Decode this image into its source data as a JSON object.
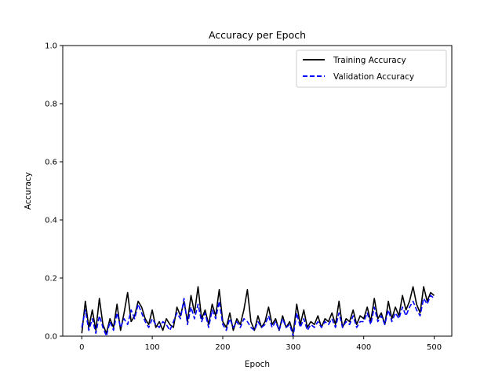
{
  "chart_data": {
    "type": "line",
    "title": "Accuracy per Epoch",
    "xlabel": "Epoch",
    "ylabel": "Accuracy",
    "xlim": [
      -27,
      525
    ],
    "ylim": [
      0,
      1.0
    ],
    "xticks": [
      0,
      100,
      200,
      300,
      400,
      500
    ],
    "yticks": [
      0.0,
      0.2,
      0.4,
      0.6,
      0.8,
      1.0
    ],
    "xtick_labels": [
      "0",
      "100",
      "200",
      "300",
      "400",
      "500"
    ],
    "ytick_labels": [
      "0.0",
      "0.2",
      "0.4",
      "0.6",
      "0.8",
      "1.0"
    ],
    "legend_position": "top-right",
    "grid": false,
    "series": [
      {
        "name": "Training Accuracy",
        "color": "#000000",
        "dash": "solid",
        "x": [
          0,
          5,
          10,
          15,
          20,
          25,
          30,
          35,
          40,
          45,
          50,
          55,
          60,
          65,
          70,
          75,
          80,
          85,
          90,
          95,
          100,
          105,
          110,
          115,
          120,
          125,
          130,
          135,
          140,
          145,
          150,
          155,
          160,
          165,
          170,
          175,
          180,
          185,
          190,
          195,
          200,
          205,
          210,
          215,
          220,
          225,
          230,
          235,
          240,
          245,
          250,
          255,
          260,
          265,
          270,
          275,
          280,
          285,
          290,
          295,
          300,
          305,
          310,
          315,
          320,
          325,
          330,
          335,
          340,
          345,
          350,
          355,
          360,
          365,
          370,
          375,
          380,
          385,
          390,
          395,
          400,
          405,
          410,
          415,
          420,
          425,
          430,
          435,
          440,
          445,
          450,
          455,
          460,
          465,
          470,
          475,
          480,
          485,
          490,
          495,
          500
        ],
        "values": [
          0.01,
          0.12,
          0.03,
          0.09,
          0.02,
          0.13,
          0.04,
          0.01,
          0.06,
          0.03,
          0.11,
          0.02,
          0.08,
          0.15,
          0.05,
          0.07,
          0.12,
          0.1,
          0.06,
          0.04,
          0.09,
          0.03,
          0.05,
          0.02,
          0.06,
          0.04,
          0.03,
          0.1,
          0.07,
          0.12,
          0.05,
          0.14,
          0.08,
          0.17,
          0.06,
          0.09,
          0.04,
          0.11,
          0.07,
          0.16,
          0.05,
          0.03,
          0.08,
          0.02,
          0.06,
          0.04,
          0.09,
          0.16,
          0.05,
          0.02,
          0.07,
          0.03,
          0.05,
          0.1,
          0.04,
          0.06,
          0.02,
          0.07,
          0.03,
          0.05,
          0.01,
          0.11,
          0.04,
          0.09,
          0.03,
          0.05,
          0.04,
          0.07,
          0.03,
          0.06,
          0.05,
          0.08,
          0.04,
          0.12,
          0.03,
          0.06,
          0.05,
          0.09,
          0.04,
          0.07,
          0.06,
          0.1,
          0.05,
          0.13,
          0.06,
          0.08,
          0.04,
          0.12,
          0.06,
          0.1,
          0.07,
          0.14,
          0.09,
          0.12,
          0.17,
          0.11,
          0.08,
          0.17,
          0.12,
          0.15,
          0.14
        ]
      },
      {
        "name": "Validation Accuracy",
        "color": "#0000ff",
        "dash": "dashed",
        "x": [
          0,
          5,
          10,
          15,
          20,
          25,
          30,
          35,
          40,
          45,
          50,
          55,
          60,
          65,
          70,
          75,
          80,
          85,
          90,
          95,
          100,
          105,
          110,
          115,
          120,
          125,
          130,
          135,
          140,
          145,
          150,
          155,
          160,
          165,
          170,
          175,
          180,
          185,
          190,
          195,
          200,
          205,
          210,
          215,
          220,
          225,
          230,
          235,
          240,
          245,
          250,
          255,
          260,
          265,
          270,
          275,
          280,
          285,
          290,
          295,
          300,
          305,
          310,
          315,
          320,
          325,
          330,
          335,
          340,
          345,
          350,
          355,
          360,
          365,
          370,
          375,
          380,
          385,
          390,
          395,
          400,
          405,
          410,
          415,
          420,
          425,
          430,
          435,
          440,
          445,
          450,
          455,
          460,
          465,
          470,
          475,
          480,
          485,
          490,
          495,
          500
        ],
        "values": [
          0.03,
          0.09,
          0.02,
          0.06,
          0.01,
          0.07,
          0.03,
          0.0,
          0.05,
          0.02,
          0.08,
          0.03,
          0.06,
          0.04,
          0.09,
          0.06,
          0.11,
          0.08,
          0.05,
          0.03,
          0.06,
          0.04,
          0.03,
          0.05,
          0.04,
          0.02,
          0.05,
          0.08,
          0.06,
          0.13,
          0.04,
          0.1,
          0.06,
          0.11,
          0.05,
          0.08,
          0.03,
          0.09,
          0.06,
          0.12,
          0.04,
          0.02,
          0.06,
          0.03,
          0.05,
          0.03,
          0.06,
          0.05,
          0.03,
          0.02,
          0.05,
          0.03,
          0.04,
          0.07,
          0.03,
          0.05,
          0.02,
          0.06,
          0.03,
          0.04,
          0.0,
          0.08,
          0.03,
          0.06,
          0.02,
          0.04,
          0.03,
          0.05,
          0.03,
          0.05,
          0.04,
          0.06,
          0.03,
          0.08,
          0.03,
          0.05,
          0.04,
          0.07,
          0.03,
          0.05,
          0.05,
          0.08,
          0.04,
          0.1,
          0.05,
          0.07,
          0.04,
          0.09,
          0.05,
          0.08,
          0.06,
          0.1,
          0.07,
          0.1,
          0.12,
          0.09,
          0.07,
          0.13,
          0.11,
          0.14,
          0.13
        ]
      }
    ]
  }
}
